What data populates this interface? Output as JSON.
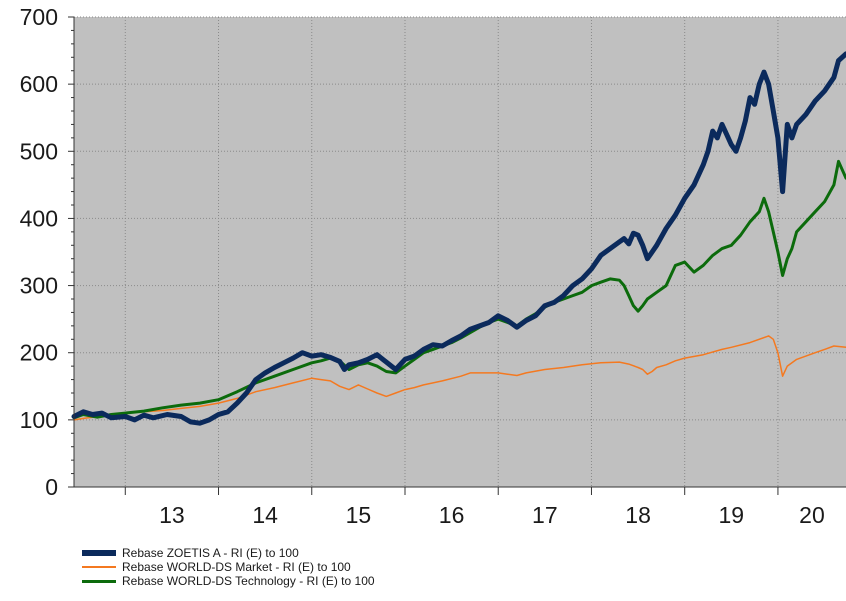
{
  "chart_data": {
    "type": "line",
    "title": "",
    "xlabel": "",
    "ylabel": "",
    "ylim": [
      0,
      700
    ],
    "xlim": [
      2012.45,
      2020.73
    ],
    "y_ticks": [
      0,
      100,
      200,
      300,
      400,
      500,
      600,
      700
    ],
    "x_ticks": [
      {
        "label": "13",
        "value": 2013
      },
      {
        "label": "14",
        "value": 2014
      },
      {
        "label": "15",
        "value": 2015
      },
      {
        "label": "16",
        "value": 2016
      },
      {
        "label": "17",
        "value": 2017
      },
      {
        "label": "18",
        "value": 2018
      },
      {
        "label": "19",
        "value": 2019
      },
      {
        "label": "20",
        "value": 2020
      }
    ],
    "grid": true,
    "background": "#c0c0c0",
    "legend_position": "bottom",
    "series": [
      {
        "name": "Rebase ZOETIS A - RI (E) to 100",
        "color": "#0b2a5c",
        "width": 5,
        "points": [
          [
            2012.45,
            105
          ],
          [
            2012.55,
            112
          ],
          [
            2012.65,
            108
          ],
          [
            2012.75,
            110
          ],
          [
            2012.85,
            103
          ],
          [
            2013.0,
            105
          ],
          [
            2013.1,
            100
          ],
          [
            2013.2,
            107
          ],
          [
            2013.3,
            103
          ],
          [
            2013.45,
            108
          ],
          [
            2013.6,
            105
          ],
          [
            2013.7,
            97
          ],
          [
            2013.8,
            95
          ],
          [
            2013.9,
            100
          ],
          [
            2014.0,
            108
          ],
          [
            2014.1,
            112
          ],
          [
            2014.2,
            125
          ],
          [
            2014.3,
            140
          ],
          [
            2014.4,
            160
          ],
          [
            2014.5,
            170
          ],
          [
            2014.6,
            178
          ],
          [
            2014.7,
            185
          ],
          [
            2014.8,
            192
          ],
          [
            2014.9,
            200
          ],
          [
            2015.0,
            195
          ],
          [
            2015.1,
            197
          ],
          [
            2015.2,
            193
          ],
          [
            2015.3,
            187
          ],
          [
            2015.35,
            175
          ],
          [
            2015.4,
            182
          ],
          [
            2015.5,
            185
          ],
          [
            2015.6,
            190
          ],
          [
            2015.7,
            197
          ],
          [
            2015.8,
            186
          ],
          [
            2015.9,
            175
          ],
          [
            2016.0,
            190
          ],
          [
            2016.1,
            195
          ],
          [
            2016.2,
            205
          ],
          [
            2016.3,
            212
          ],
          [
            2016.4,
            210
          ],
          [
            2016.5,
            218
          ],
          [
            2016.6,
            225
          ],
          [
            2016.7,
            235
          ],
          [
            2016.8,
            240
          ],
          [
            2016.9,
            245
          ],
          [
            2017.0,
            255
          ],
          [
            2017.1,
            248
          ],
          [
            2017.2,
            238
          ],
          [
            2017.3,
            248
          ],
          [
            2017.4,
            255
          ],
          [
            2017.5,
            270
          ],
          [
            2017.6,
            275
          ],
          [
            2017.7,
            285
          ],
          [
            2017.8,
            300
          ],
          [
            2017.9,
            310
          ],
          [
            2018.0,
            325
          ],
          [
            2018.1,
            345
          ],
          [
            2018.2,
            355
          ],
          [
            2018.3,
            365
          ],
          [
            2018.35,
            370
          ],
          [
            2018.4,
            362
          ],
          [
            2018.45,
            378
          ],
          [
            2018.5,
            375
          ],
          [
            2018.55,
            360
          ],
          [
            2018.6,
            340
          ],
          [
            2018.65,
            350
          ],
          [
            2018.7,
            360
          ],
          [
            2018.8,
            385
          ],
          [
            2018.9,
            405
          ],
          [
            2019.0,
            430
          ],
          [
            2019.1,
            450
          ],
          [
            2019.2,
            480
          ],
          [
            2019.25,
            500
          ],
          [
            2019.3,
            530
          ],
          [
            2019.35,
            520
          ],
          [
            2019.4,
            540
          ],
          [
            2019.45,
            525
          ],
          [
            2019.5,
            510
          ],
          [
            2019.55,
            500
          ],
          [
            2019.6,
            520
          ],
          [
            2019.65,
            545
          ],
          [
            2019.7,
            580
          ],
          [
            2019.75,
            570
          ],
          [
            2019.8,
            600
          ],
          [
            2019.85,
            618
          ],
          [
            2019.9,
            600
          ],
          [
            2019.95,
            560
          ],
          [
            2020.0,
            520
          ],
          [
            2020.05,
            440
          ],
          [
            2020.1,
            540
          ],
          [
            2020.15,
            520
          ],
          [
            2020.2,
            540
          ],
          [
            2020.3,
            555
          ],
          [
            2020.4,
            575
          ],
          [
            2020.5,
            590
          ],
          [
            2020.6,
            610
          ],
          [
            2020.65,
            635
          ],
          [
            2020.73,
            645
          ]
        ]
      },
      {
        "name": "Rebase WORLD-DS Market - RI (E) to 100",
        "color": "#f47920",
        "width": 1.5,
        "points": [
          [
            2012.45,
            100
          ],
          [
            2012.6,
            103
          ],
          [
            2012.8,
            106
          ],
          [
            2013.0,
            110
          ],
          [
            2013.2,
            112
          ],
          [
            2013.4,
            114
          ],
          [
            2013.6,
            117
          ],
          [
            2013.8,
            120
          ],
          [
            2014.0,
            125
          ],
          [
            2014.2,
            132
          ],
          [
            2014.4,
            142
          ],
          [
            2014.6,
            148
          ],
          [
            2014.8,
            155
          ],
          [
            2015.0,
            162
          ],
          [
            2015.1,
            160
          ],
          [
            2015.2,
            158
          ],
          [
            2015.3,
            150
          ],
          [
            2015.4,
            145
          ],
          [
            2015.5,
            152
          ],
          [
            2015.6,
            146
          ],
          [
            2015.7,
            140
          ],
          [
            2015.8,
            135
          ],
          [
            2015.9,
            140
          ],
          [
            2016.0,
            145
          ],
          [
            2016.1,
            148
          ],
          [
            2016.2,
            152
          ],
          [
            2016.4,
            158
          ],
          [
            2016.6,
            165
          ],
          [
            2016.7,
            170
          ],
          [
            2016.8,
            170
          ],
          [
            2017.0,
            170
          ],
          [
            2017.1,
            168
          ],
          [
            2017.2,
            166
          ],
          [
            2017.3,
            170
          ],
          [
            2017.5,
            175
          ],
          [
            2017.7,
            178
          ],
          [
            2017.9,
            182
          ],
          [
            2018.1,
            185
          ],
          [
            2018.3,
            186
          ],
          [
            2018.4,
            183
          ],
          [
            2018.5,
            178
          ],
          [
            2018.55,
            175
          ],
          [
            2018.6,
            168
          ],
          [
            2018.65,
            172
          ],
          [
            2018.7,
            178
          ],
          [
            2018.8,
            182
          ],
          [
            2018.9,
            188
          ],
          [
            2019.0,
            192
          ],
          [
            2019.2,
            197
          ],
          [
            2019.4,
            205
          ],
          [
            2019.5,
            208
          ],
          [
            2019.7,
            215
          ],
          [
            2019.9,
            225
          ],
          [
            2019.95,
            220
          ],
          [
            2020.0,
            200
          ],
          [
            2020.05,
            165
          ],
          [
            2020.1,
            180
          ],
          [
            2020.2,
            190
          ],
          [
            2020.3,
            195
          ],
          [
            2020.4,
            200
          ],
          [
            2020.5,
            205
          ],
          [
            2020.6,
            210
          ],
          [
            2020.73,
            208
          ]
        ]
      },
      {
        "name": "Rebase WORLD-DS Technology - RI (E) to 100",
        "color": "#0c6b0c",
        "width": 3,
        "points": [
          [
            2012.45,
            103
          ],
          [
            2012.55,
            108
          ],
          [
            2012.7,
            104
          ],
          [
            2012.85,
            108
          ],
          [
            2013.0,
            110
          ],
          [
            2013.2,
            113
          ],
          [
            2013.4,
            118
          ],
          [
            2013.6,
            122
          ],
          [
            2013.8,
            125
          ],
          [
            2014.0,
            130
          ],
          [
            2014.2,
            142
          ],
          [
            2014.4,
            155
          ],
          [
            2014.6,
            165
          ],
          [
            2014.8,
            175
          ],
          [
            2015.0,
            185
          ],
          [
            2015.1,
            188
          ],
          [
            2015.2,
            192
          ],
          [
            2015.3,
            188
          ],
          [
            2015.4,
            175
          ],
          [
            2015.5,
            182
          ],
          [
            2015.6,
            185
          ],
          [
            2015.7,
            180
          ],
          [
            2015.8,
            172
          ],
          [
            2015.9,
            170
          ],
          [
            2016.0,
            180
          ],
          [
            2016.1,
            190
          ],
          [
            2016.2,
            200
          ],
          [
            2016.3,
            205
          ],
          [
            2016.4,
            210
          ],
          [
            2016.5,
            215
          ],
          [
            2016.6,
            222
          ],
          [
            2016.7,
            230
          ],
          [
            2016.8,
            238
          ],
          [
            2016.9,
            245
          ],
          [
            2017.0,
            250
          ],
          [
            2017.1,
            245
          ],
          [
            2017.2,
            240
          ],
          [
            2017.3,
            250
          ],
          [
            2017.4,
            258
          ],
          [
            2017.5,
            268
          ],
          [
            2017.6,
            275
          ],
          [
            2017.7,
            280
          ],
          [
            2017.8,
            285
          ],
          [
            2017.9,
            290
          ],
          [
            2018.0,
            300
          ],
          [
            2018.1,
            305
          ],
          [
            2018.2,
            310
          ],
          [
            2018.3,
            308
          ],
          [
            2018.35,
            300
          ],
          [
            2018.4,
            285
          ],
          [
            2018.45,
            270
          ],
          [
            2018.5,
            262
          ],
          [
            2018.55,
            270
          ],
          [
            2018.6,
            280
          ],
          [
            2018.7,
            290
          ],
          [
            2018.8,
            300
          ],
          [
            2018.9,
            330
          ],
          [
            2019.0,
            335
          ],
          [
            2019.1,
            320
          ],
          [
            2019.2,
            330
          ],
          [
            2019.3,
            345
          ],
          [
            2019.4,
            355
          ],
          [
            2019.5,
            360
          ],
          [
            2019.6,
            375
          ],
          [
            2019.7,
            395
          ],
          [
            2019.8,
            410
          ],
          [
            2019.85,
            430
          ],
          [
            2019.9,
            410
          ],
          [
            2019.95,
            380
          ],
          [
            2020.0,
            350
          ],
          [
            2020.05,
            315
          ],
          [
            2020.1,
            340
          ],
          [
            2020.15,
            355
          ],
          [
            2020.2,
            380
          ],
          [
            2020.3,
            395
          ],
          [
            2020.4,
            410
          ],
          [
            2020.5,
            425
          ],
          [
            2020.6,
            450
          ],
          [
            2020.65,
            485
          ],
          [
            2020.73,
            460
          ]
        ]
      }
    ]
  }
}
